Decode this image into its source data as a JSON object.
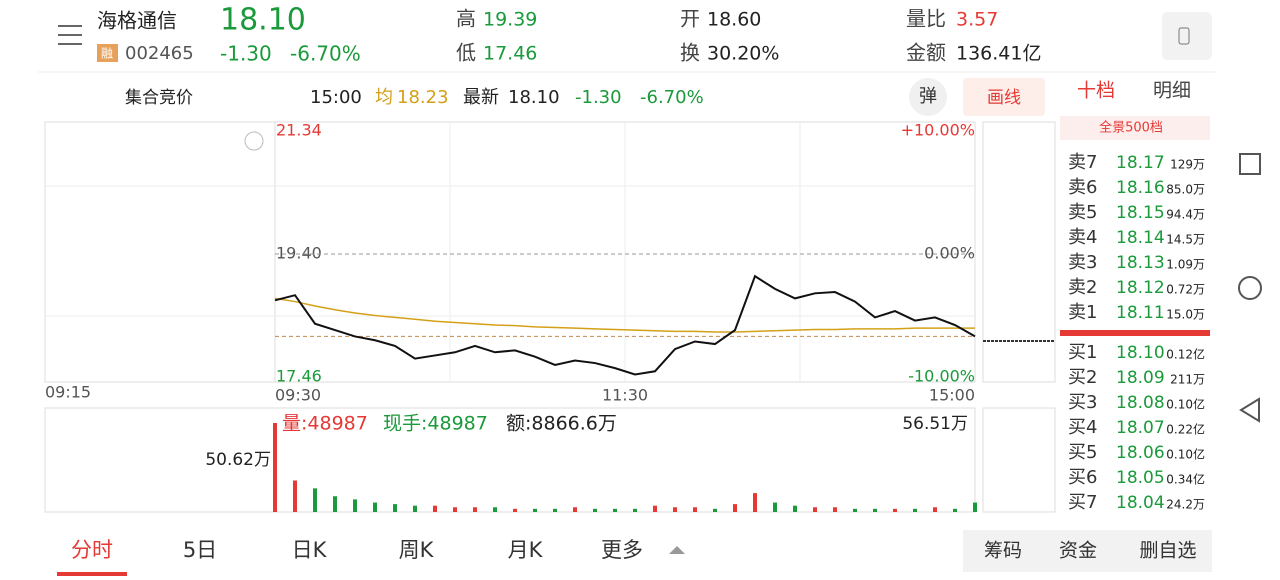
{
  "header": {
    "name": "海格通信",
    "price": "18.10",
    "tag": "融",
    "code": "002465",
    "change": "-1.30",
    "pct": "-6.70%",
    "high_label": "高",
    "high": "19.39",
    "low_label": "低",
    "low": "17.46",
    "open_label": "开",
    "open": "18.60",
    "turnover_label": "换",
    "turnover": "30.20%",
    "ratio_label": "量比",
    "ratio": "3.57",
    "amount_label": "金额",
    "amount": "136.41亿"
  },
  "bar": {
    "auction": "集合竞价",
    "time": "15:00",
    "avg_label": "均",
    "avg": "18.23",
    "last_label": "最新",
    "last": "18.10",
    "change": "-1.30",
    "pct": "-6.70%",
    "pop": "弹",
    "draw": "画线"
  },
  "side_tabs": {
    "tab1": "十档",
    "tab2": "明细",
    "panorama": "全景500档"
  },
  "order_book": {
    "sell": [
      [
        "卖7",
        "18.17",
        "129万"
      ],
      [
        "卖6",
        "18.16",
        "85.0万"
      ],
      [
        "卖5",
        "18.15",
        "94.4万"
      ],
      [
        "卖4",
        "18.14",
        "14.5万"
      ],
      [
        "卖3",
        "18.13",
        "1.09万"
      ],
      [
        "卖2",
        "18.12",
        "0.72万"
      ],
      [
        "卖1",
        "18.11",
        "15.0万"
      ]
    ],
    "buy": [
      [
        "买1",
        "18.10",
        "0.12亿"
      ],
      [
        "买2",
        "18.09",
        "211万"
      ],
      [
        "买3",
        "18.08",
        "0.10亿"
      ],
      [
        "买4",
        "18.07",
        "0.22亿"
      ],
      [
        "买5",
        "18.06",
        "0.10亿"
      ],
      [
        "买6",
        "18.05",
        "0.34亿"
      ],
      [
        "买7",
        "18.04",
        "24.2万"
      ]
    ]
  },
  "chart": {
    "pre_time": "09:15",
    "times": [
      "09:30",
      "11:30",
      "15:00"
    ],
    "ylim": [
      17.46,
      21.34
    ],
    "yticks": [
      {
        "value": 21.34,
        "label": "21.34"
      },
      {
        "value": 19.4,
        "label": "19.40"
      },
      {
        "value": 17.46,
        "label": "17.46"
      }
    ],
    "y2lim": [
      -10,
      10
    ],
    "y2ticks": [
      {
        "value": 10,
        "label": "+10.00%"
      },
      {
        "value": 0,
        "label": "0.00%"
      },
      {
        "value": -10,
        "label": "-10.00%"
      }
    ],
    "price": [
      18.67,
      18.75,
      18.3,
      18.2,
      18.1,
      18.04,
      17.95,
      17.75,
      17.8,
      17.85,
      17.95,
      17.85,
      17.88,
      17.78,
      17.65,
      17.72,
      17.68,
      17.6,
      17.5,
      17.55,
      17.9,
      18.02,
      17.98,
      18.2,
      19.05,
      18.85,
      18.7,
      18.78,
      18.8,
      18.65,
      18.4,
      18.5,
      18.35,
      18.4,
      18.28,
      18.1
    ],
    "avg": [
      18.7,
      18.65,
      18.58,
      18.52,
      18.47,
      18.43,
      18.4,
      18.37,
      18.34,
      18.32,
      18.3,
      18.28,
      18.27,
      18.25,
      18.24,
      18.23,
      18.22,
      18.21,
      18.2,
      18.19,
      18.18,
      18.18,
      18.17,
      18.17,
      18.18,
      18.19,
      18.2,
      18.21,
      18.21,
      18.22,
      18.22,
      18.22,
      18.23,
      18.23,
      18.23,
      18.23
    ],
    "vlim": [
      0,
      56.51
    ],
    "volume": [
      56.51,
      20,
      15,
      10,
      8,
      6,
      5,
      4,
      4,
      3,
      3,
      3,
      2,
      2,
      2,
      3,
      2,
      2,
      2,
      4,
      3,
      3,
      2,
      5,
      12,
      6,
      4,
      3,
      3,
      2,
      2,
      2,
      2,
      3,
      2,
      6
    ],
    "vol_label": "量:48987",
    "hand_label": "现手:48987",
    "amt_label": "额:8866.6万",
    "vol_max": "56.51万",
    "pre_vol": "50.62万"
  },
  "bottom_tabs": [
    "分时",
    "5日",
    "日K",
    "周K",
    "月K",
    "更多"
  ],
  "buttons": [
    "筹码",
    "资金",
    "删自选"
  ]
}
